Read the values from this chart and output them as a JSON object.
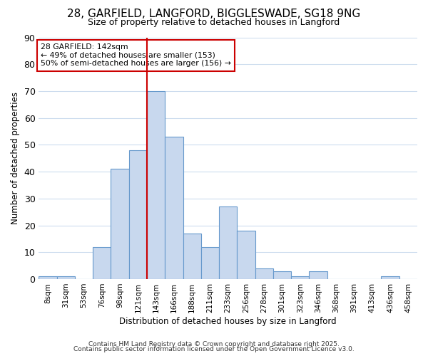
{
  "title_line1": "28, GARFIELD, LANGFORD, BIGGLESWADE, SG18 9NG",
  "title_line2": "Size of property relative to detached houses in Langford",
  "xlabel": "Distribution of detached houses by size in Langford",
  "ylabel": "Number of detached properties",
  "bin_labels": [
    "8sqm",
    "31sqm",
    "53sqm",
    "76sqm",
    "98sqm",
    "121sqm",
    "143sqm",
    "166sqm",
    "188sqm",
    "211sqm",
    "233sqm",
    "256sqm",
    "278sqm",
    "301sqm",
    "323sqm",
    "346sqm",
    "368sqm",
    "391sqm",
    "413sqm",
    "436sqm",
    "458sqm"
  ],
  "bar_heights": [
    1,
    1,
    0,
    12,
    41,
    48,
    70,
    53,
    17,
    12,
    27,
    18,
    4,
    3,
    1,
    3,
    0,
    0,
    0,
    1,
    0
  ],
  "bar_color": "#c8d8ee",
  "bar_edge_color": "#6699cc",
  "property_size_bin": 5,
  "annotation_title": "28 GARFIELD: 142sqm",
  "annotation_line2": "← 49% of detached houses are smaller (153)",
  "annotation_line3": "50% of semi-detached houses are larger (156) →",
  "red_line_color": "#cc0000",
  "annotation_box_edge_color": "#cc0000",
  "background_color": "#ffffff",
  "grid_color": "#ccdcee",
  "ylim": [
    0,
    90
  ],
  "yticks": [
    0,
    10,
    20,
    30,
    40,
    50,
    60,
    70,
    80,
    90
  ],
  "title_fontsize": 11,
  "subtitle_fontsize": 9,
  "footer_line1": "Contains HM Land Registry data © Crown copyright and database right 2025.",
  "footer_line2": "Contains public sector information licensed under the Open Government Licence v3.0."
}
